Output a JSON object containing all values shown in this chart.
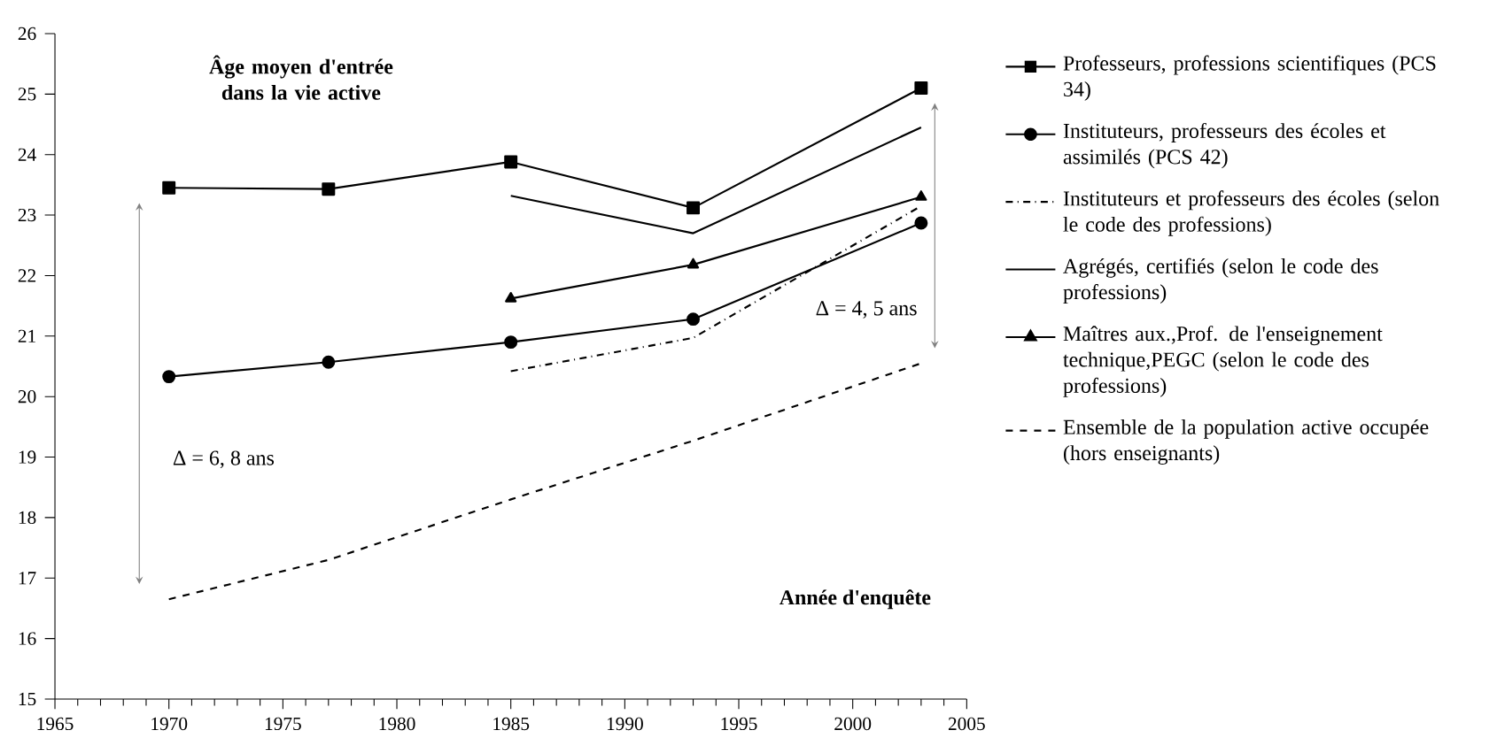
{
  "chart_data": {
    "type": "line",
    "title": "Âge moyen d'entrée dans la vie active",
    "xlabel": "Année d'enquête",
    "xlim": [
      1965,
      2005
    ],
    "xticks": [
      1965,
      1970,
      1975,
      1980,
      1985,
      1990,
      1995,
      2000,
      2005
    ],
    "ylim": [
      15,
      26
    ],
    "yticks": [
      15,
      16,
      17,
      18,
      19,
      20,
      21,
      22,
      23,
      24,
      25,
      26
    ],
    "grid": false,
    "legend": "right",
    "annotations": [
      "Δ = 6, 8 ans",
      "Δ = 4, 5 ans"
    ],
    "series": [
      {
        "name": "Professeurs, professions scientifiques (PCS 34)",
        "color": "#000000",
        "marker": "square",
        "line_style": "solid",
        "x": [
          1970,
          1977,
          1985,
          1993,
          2003
        ],
        "values": [
          23.45,
          23.43,
          23.88,
          23.12,
          25.1
        ]
      },
      {
        "name": "Instituteurs, professeurs des écoles et assimilés (PCS 42)",
        "color": "#000000",
        "marker": "circle",
        "line_style": "solid",
        "x": [
          1970,
          1977,
          1985,
          1993,
          2003
        ],
        "values": [
          20.33,
          20.57,
          20.9,
          21.28,
          22.87
        ]
      },
      {
        "name": "Instituteurs et professeurs des écoles (selon le code des professions)",
        "color": "#000000",
        "marker": "none",
        "line_style": "dashdot",
        "x": [
          1985,
          1993,
          2003
        ],
        "values": [
          20.42,
          20.97,
          23.15
        ]
      },
      {
        "name": "Agrégés, certifiés (selon le code des professions)",
        "color": "#000000",
        "marker": "none",
        "line_style": "solid",
        "x": [
          1985,
          1993,
          2003
        ],
        "values": [
          23.32,
          22.7,
          24.45
        ]
      },
      {
        "name": "Maîtres aux.,Prof. de l'enseignement technique,PEGC (selon le code des professions)",
        "color": "#000000",
        "marker": "triangle",
        "line_style": "solid",
        "x": [
          1985,
          1993,
          2003
        ],
        "values": [
          21.62,
          22.18,
          23.3
        ]
      },
      {
        "name": "Ensemble de la population active occupée (hors enseignants)",
        "color": "#000000",
        "marker": "none",
        "line_style": "dashed",
        "x": [
          1970,
          1977,
          1985,
          1993,
          2003
        ],
        "values": [
          16.65,
          17.3,
          18.3,
          19.27,
          20.55
        ]
      }
    ]
  }
}
